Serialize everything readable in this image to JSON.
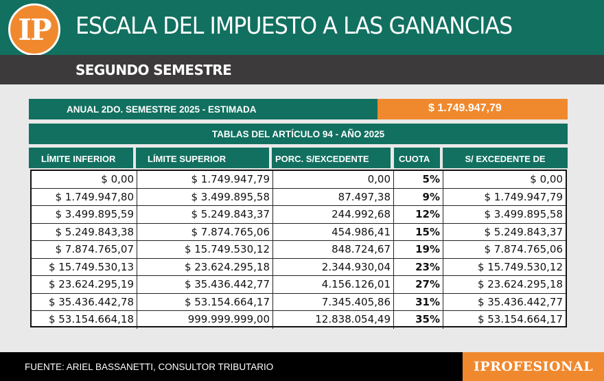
{
  "brand": {
    "logo_text": "IP",
    "footer_brand": "IPROFESIONAL"
  },
  "header": {
    "title": "ESCALA DEL IMPUESTO A LAS GANANCIAS",
    "subtitle": "SEGUNDO SEMESTRE"
  },
  "summary": {
    "label": "ANUAL 2DO. SEMESTRE 2025 - ESTIMADA",
    "value": "$ 1.749.947,79"
  },
  "table": {
    "title": "TABLAS DEL ARTÍCULO 94 - AÑO 2025",
    "columns": [
      "LÍMITE INFERIOR",
      "LÍMITE SUPERIOR",
      "PORC. S/EXCEDENTE",
      "CUOTA",
      "S/ EXCEDENTE DE"
    ],
    "rows": [
      [
        "$ 0,00",
        "$ 1.749.947,79",
        "0,00",
        "5%",
        "$ 0,00"
      ],
      [
        "$ 1.749.947,80",
        "$ 3.499.895,58",
        "87.497,38",
        "9%",
        "$ 1.749.947,79"
      ],
      [
        "$ 3.499.895,59",
        "$ 5.249.843,37",
        "244.992,68",
        "12%",
        "$ 3.499.895,58"
      ],
      [
        "$ 5.249.843,38",
        "$ 7.874.765,06",
        "454.986,41",
        "15%",
        "$ 5.249.843,37"
      ],
      [
        "$ 7.874.765,07",
        "$ 15.749.530,12",
        "848.724,67",
        "19%",
        "$ 7.874.765,06"
      ],
      [
        "$ 15.749.530,13",
        "$ 23.624.295,18",
        "2.344.930,04",
        "23%",
        "$ 15.749.530,12"
      ],
      [
        "$ 23.624.295,19",
        "$ 35.436.442,77",
        "4.156.126,01",
        "27%",
        "$ 23.624.295,18"
      ],
      [
        "$ 35.436.442,78",
        "$ 53.154.664,17",
        "7.345.405,86",
        "31%",
        "$ 35.436.442,77"
      ],
      [
        "$ 53.154.664,18",
        "999.999.999,00",
        "12.838.054,49",
        "35%",
        "$ 53.154.664,17"
      ]
    ]
  },
  "footer": {
    "source": "FUENTE:  ARIEL BASSANETTI, CONSULTOR TRIBUTARIO"
  },
  "colors": {
    "teal": "#127060",
    "orange": "#f0892e",
    "dark_bar": "#3c3a3a"
  }
}
